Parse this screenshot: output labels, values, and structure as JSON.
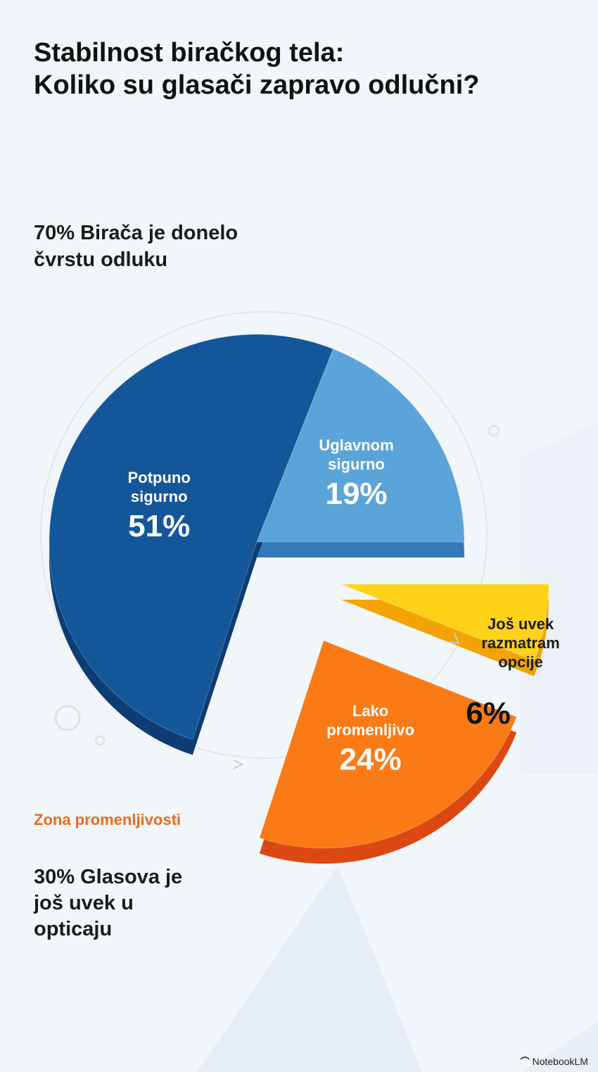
{
  "title": {
    "line1": "Stabilnost biračkog tela:",
    "line2": "Koliko su glasači zapravo odlučni?"
  },
  "decided_group": {
    "line1": "70% Birača je donelo",
    "line2": "čvrstu odluku"
  },
  "undecided_group": {
    "zone_label": "Zona promenljivosti",
    "line1": "30% Glasova je",
    "line2": "još uvek u",
    "line3": "opticaju"
  },
  "chart_data": {
    "type": "pie",
    "title": "Stabilnost biračkog tela: Koliko su glasači zapravo odlučni?",
    "unit": "%",
    "slices": [
      {
        "label": [
          "Potpuno",
          "sigurno"
        ],
        "value": 51,
        "value_label": "51%",
        "color": "#14569a",
        "side": "#0c3d75"
      },
      {
        "label": [
          "Uglavnom",
          "sigurno"
        ],
        "value": 19,
        "value_label": "19%",
        "color": "#5aa4d9",
        "side": "#3679b8"
      },
      {
        "label": [
          "Još uvek",
          "razmatram",
          "opcije"
        ],
        "value": 6,
        "value_label": "6%",
        "color": "#ffd21a",
        "side": "#f3a306"
      },
      {
        "label": [
          "Lako",
          "promenljivo"
        ],
        "value": 24,
        "value_label": "24%",
        "color": "#fa7a16",
        "side": "#dc4812"
      }
    ],
    "groups": [
      {
        "label": "70% Birača je donelo čvrstu odluku",
        "slices": [
          "Potpuno sigurno",
          "Uglavnom sigurno"
        ]
      },
      {
        "label": "30% Glasova je još uvek u opticaju",
        "slices": [
          "Lako promenljivo",
          "Još uvek razmatram opcije"
        ]
      }
    ]
  },
  "footer": {
    "brand": "NotebookLM",
    "brand_icon": "notebooklm-logo-icon"
  },
  "colors": {
    "background": "#f1f6fa",
    "zone_accent": "#ef6a1a",
    "heading": "#111111"
  }
}
